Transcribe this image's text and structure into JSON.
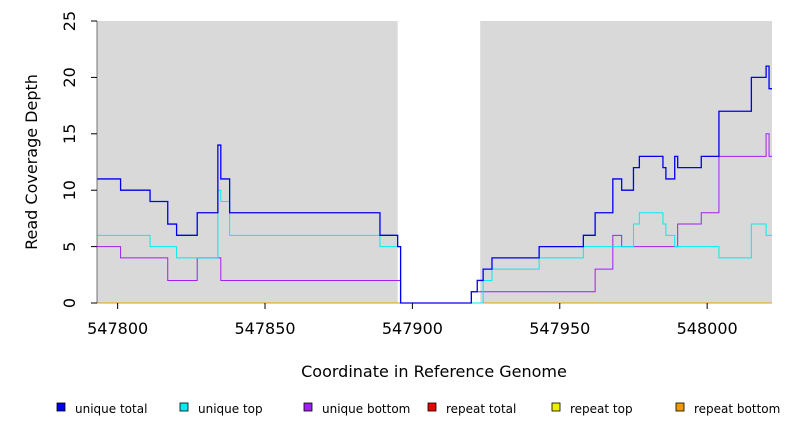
{
  "chart_data": {
    "type": "line",
    "title": "",
    "xlabel": "Coordinate in Reference Genome",
    "ylabel": "Read Coverage Depth",
    "xlim": [
      547793,
      548022
    ],
    "ylim": [
      0,
      25
    ],
    "x_ticks": [
      547800,
      547850,
      547900,
      547950,
      548000
    ],
    "x_tick_labels": [
      "547800",
      "547850",
      "547900",
      "547950",
      "548000"
    ],
    "y_ticks": [
      0,
      5,
      10,
      15,
      20,
      25
    ],
    "y_tick_labels": [
      "0",
      "5",
      "10",
      "15",
      "20",
      "25"
    ],
    "grid": false,
    "background_color": "#d9d9d9",
    "shaded_regions": [
      {
        "x0": 547793,
        "x1": 547895
      },
      {
        "x0": 547923,
        "x1": 548022
      }
    ],
    "legend_position": "bottom",
    "legend": [
      {
        "label": "unique total",
        "color": "#0000ee"
      },
      {
        "label": "unique top",
        "color": "#00eeee"
      },
      {
        "label": "unique bottom",
        "color": "#a020f0"
      },
      {
        "label": "repeat total",
        "color": "#ee0000"
      },
      {
        "label": "repeat top",
        "color": "#eeee00"
      },
      {
        "label": "repeat bottom",
        "color": "#ee9a00"
      }
    ],
    "series": [
      {
        "name": "unique total",
        "color": "#0000ee",
        "x": [
          547793,
          547801,
          547811,
          547817,
          547820,
          547827,
          547834,
          547835,
          547838,
          547888,
          547889,
          547895,
          547896,
          547916,
          547920,
          547922,
          547924,
          547927,
          547943,
          547958,
          547962,
          547968,
          547971,
          547975,
          547977,
          547985,
          547986,
          547989,
          547990,
          547998,
          548004,
          548015,
          548020,
          548021,
          548022
        ],
        "y": [
          11,
          10,
          9,
          7,
          6,
          8,
          14,
          11,
          8,
          8,
          6,
          5,
          0,
          0,
          1,
          2,
          3,
          4,
          5,
          6,
          8,
          11,
          10,
          12,
          13,
          12,
          11,
          13,
          12,
          13,
          17,
          20,
          21,
          19,
          19
        ]
      },
      {
        "name": "unique top",
        "color": "#00eeee",
        "x": [
          547793,
          547811,
          547820,
          547834,
          547835,
          547838,
          547888,
          547889,
          547895,
          547896,
          547922,
          547924,
          547927,
          547943,
          547958,
          547975,
          547977,
          547985,
          547986,
          547989,
          548004,
          548015,
          548020,
          548022
        ],
        "y": [
          6,
          5,
          4,
          10,
          9,
          6,
          6,
          5,
          5,
          0,
          0,
          2,
          3,
          4,
          5,
          7,
          8,
          7,
          6,
          5,
          4,
          7,
          6,
          6
        ]
      },
      {
        "name": "unique bottom",
        "color": "#a020f0",
        "x": [
          547793,
          547801,
          547817,
          547827,
          547835,
          547888,
          547896,
          547916,
          547920,
          547924,
          547962,
          547968,
          547971,
          547990,
          547998,
          548004,
          548020,
          548021,
          548022
        ],
        "y": [
          5,
          4,
          2,
          4,
          2,
          2,
          0,
          0,
          1,
          1,
          3,
          6,
          5,
          7,
          8,
          13,
          15,
          13,
          13
        ]
      },
      {
        "name": "repeat total",
        "color": "#ee0000",
        "x": [
          547793,
          548022
        ],
        "y": [
          0,
          0
        ]
      },
      {
        "name": "repeat top",
        "color": "#eeee00",
        "x": [
          547793,
          548022
        ],
        "y": [
          0,
          0
        ]
      },
      {
        "name": "repeat bottom",
        "color": "#ee9a00",
        "x": [
          547793,
          548022
        ],
        "y": [
          0,
          0
        ]
      }
    ]
  }
}
